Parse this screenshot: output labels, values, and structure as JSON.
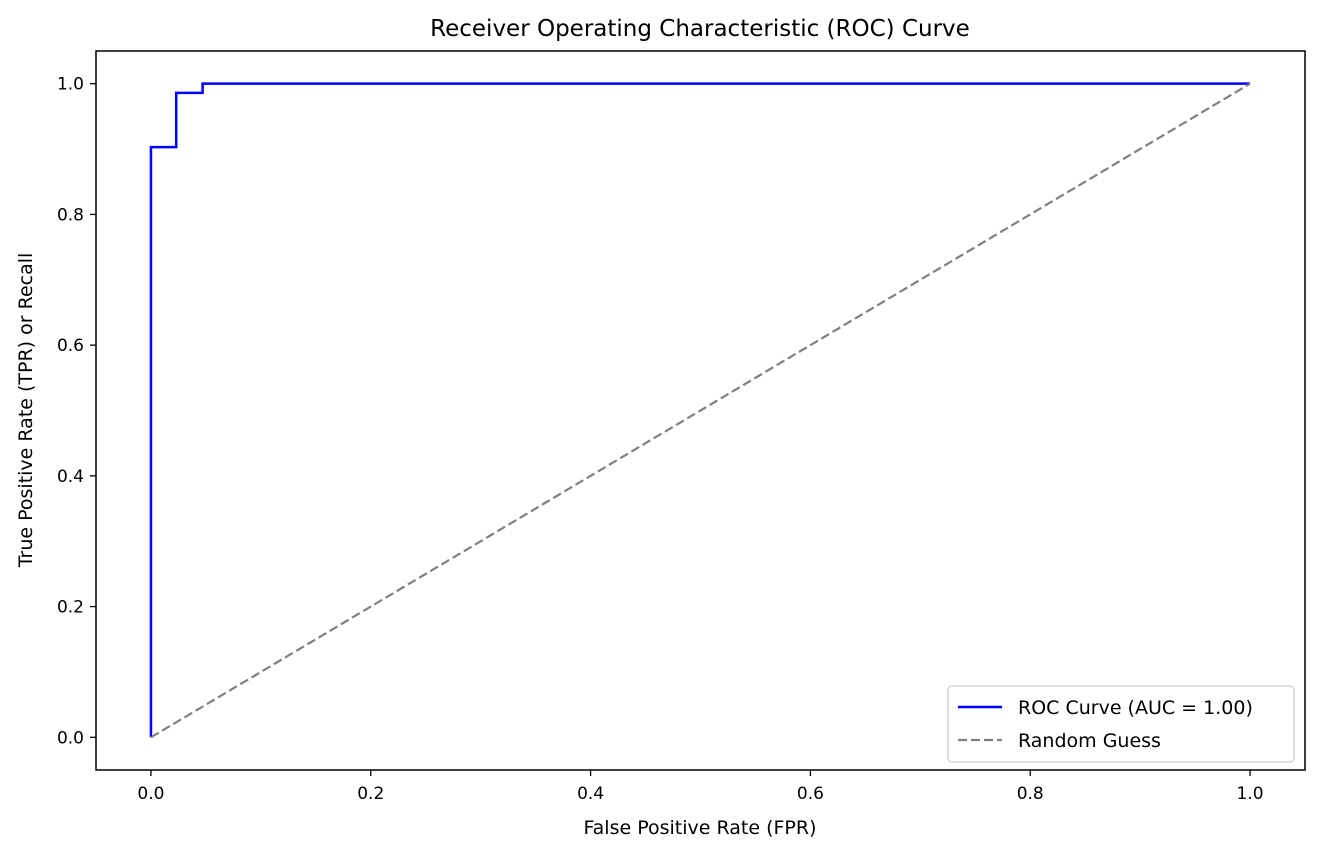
{
  "chart_data": {
    "type": "line",
    "title": "Receiver Operating Characteristic (ROC) Curve",
    "xlabel": "False Positive Rate (FPR)",
    "ylabel": "True Positive Rate (TPR) or Recall",
    "xlim": [
      -0.05,
      1.05
    ],
    "ylim": [
      -0.05,
      1.05
    ],
    "xticks": [
      "0.0",
      "0.2",
      "0.4",
      "0.6",
      "0.8",
      "1.0"
    ],
    "yticks": [
      "0.0",
      "0.2",
      "0.4",
      "0.6",
      "0.8",
      "1.0"
    ],
    "grid": false,
    "legend_position": "bottom-right",
    "series": [
      {
        "name": "ROC Curve (AUC = 1.00)",
        "color": "#0000ff",
        "style": "solid",
        "x": [
          0.0,
          0.0,
          0.023,
          0.023,
          0.047,
          0.047,
          1.0
        ],
        "y": [
          0.0,
          0.903,
          0.903,
          0.986,
          0.986,
          1.0,
          1.0
        ]
      },
      {
        "name": "Random Guess",
        "color": "#808080",
        "style": "dashed",
        "x": [
          0.0,
          1.0
        ],
        "y": [
          0.0,
          1.0
        ]
      }
    ]
  }
}
